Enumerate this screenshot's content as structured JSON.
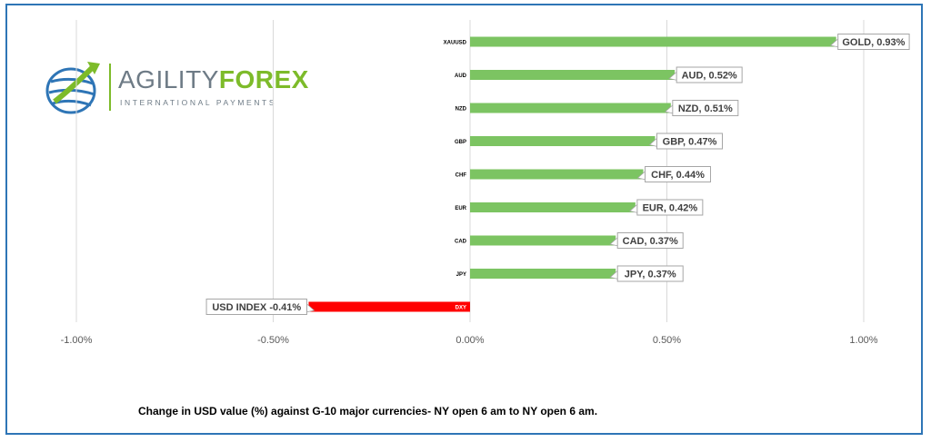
{
  "logo": {
    "word1": "AGILITY",
    "word2": "FOREX",
    "tagline": "INTERNATIONAL PAYMENTS"
  },
  "caption": "Change in  USD value (%)  against  G-10 major currencies- NY open 6 am to NY open 6 am.",
  "chart_data": {
    "type": "bar",
    "orientation": "horizontal",
    "categories": [
      "XAUUSD",
      "AUD",
      "NZD",
      "GBP",
      "CHF",
      "EUR",
      "CAD",
      "JPY",
      "DXY"
    ],
    "values": [
      0.93,
      0.52,
      0.51,
      0.47,
      0.44,
      0.42,
      0.37,
      0.37,
      -0.41
    ],
    "data_labels": [
      "GOLD, 0.93%",
      "AUD, 0.52%",
      "NZD, 0.51%",
      "GBP, 0.47%",
      "CHF, 0.44%",
      "EUR, 0.42%",
      "CAD, 0.37%",
      "JPY, 0.37%",
      "USD INDEX -0.41%"
    ],
    "xlim": [
      -1.0,
      1.0
    ],
    "xticks": [
      -1.0,
      -0.5,
      0.0,
      0.5,
      1.0
    ],
    "xtick_labels": [
      "-1.00%",
      "-0.50%",
      "0.00%",
      "0.50%",
      "1.00%"
    ],
    "grid": "vertical",
    "colors": {
      "positive": "#7cc462",
      "negative": "#ff0000",
      "grid": "#d9d9d9",
      "label_border": "#a6a6a6"
    }
  }
}
